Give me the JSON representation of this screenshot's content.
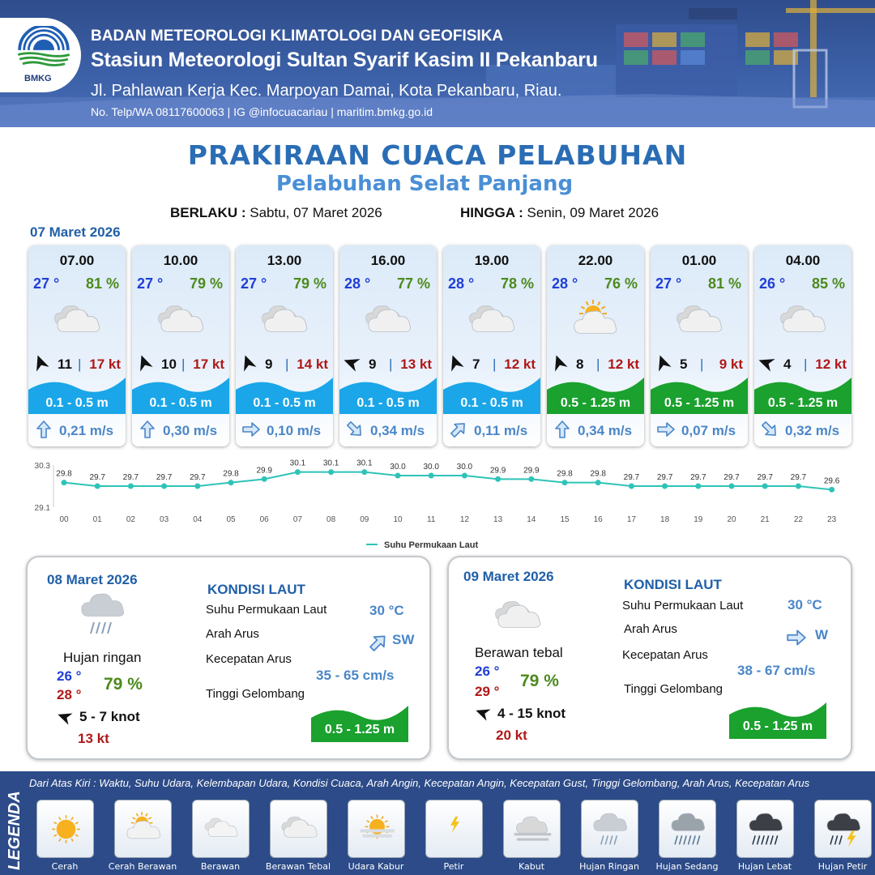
{
  "header": {
    "logo_text": "BMKG",
    "agency": "BADAN METEOROLOGI KLIMATOLOGI DAN GEOFISIKA",
    "station": "Stasiun Meteorologi Sultan Syarif Kasim II Pekanbaru",
    "address": "Jl. Pahlawan Kerja Kec. Marpoyan Damai, Kota Pekanbaru, Riau.",
    "contact": "No. Telp/WA 08117600063 | IG @infocuacariau | maritim.bmkg.go.id"
  },
  "title": "PRAKIRAAN CUACA PELABUHAN",
  "subtitle": "Pelabuhan Selat Panjang",
  "validity": {
    "from_label": "BERLAKU :",
    "from_value": "Sabtu, 07 Maret 2026",
    "to_label": "HINGGA :",
    "to_value": "Senin, 09 Maret 2026"
  },
  "day1_date": "07 Maret 2026",
  "colors": {
    "wave_low": "#1aa6e8",
    "wave_mid": "#1aa12e",
    "temp": "#1f3fd6",
    "humidity": "#4c8a1c",
    "gust": "#b01818"
  },
  "forecast": [
    {
      "time": "07.00",
      "temp": "27 °",
      "humidity": "81 %",
      "icon": "berawan-tebal",
      "wind_dir_deg": 160,
      "wind_speed": "11",
      "gust": "17 kt",
      "wave": "0.1 - 0.5 m",
      "wave_level": "low",
      "current_icon": "arrow-down-icon",
      "current_dir_deg": 180,
      "current": "0,21 m/s"
    },
    {
      "time": "10.00",
      "temp": "27 °",
      "humidity": "79 %",
      "icon": "berawan-tebal",
      "wind_dir_deg": 160,
      "wind_speed": "10",
      "gust": "17 kt",
      "wave": "0.1 - 0.5 m",
      "wave_level": "low",
      "current_icon": "arrow-down-icon",
      "current_dir_deg": 180,
      "current": "0,30 m/s"
    },
    {
      "time": "13.00",
      "temp": "27 °",
      "humidity": "79 %",
      "icon": "berawan-tebal",
      "wind_dir_deg": 160,
      "wind_speed": "9",
      "gust": "14 kt",
      "wave": "0.1 - 0.5 m",
      "wave_level": "low",
      "current_icon": "arrow-left-icon",
      "current_dir_deg": 270,
      "current": "0,10 m/s"
    },
    {
      "time": "16.00",
      "temp": "28 °",
      "humidity": "77 %",
      "icon": "berawan-tebal",
      "wind_dir_deg": 110,
      "wind_speed": "9",
      "gust": "13 kt",
      "wave": "0.1 - 0.5 m",
      "wave_level": "low",
      "current_icon": "arrow-up-left-icon",
      "current_dir_deg": 315,
      "current": "0,34 m/s"
    },
    {
      "time": "19.00",
      "temp": "28 °",
      "humidity": "78 %",
      "icon": "berawan-tebal",
      "wind_dir_deg": 160,
      "wind_speed": "7",
      "gust": "12 kt",
      "wave": "0.1 - 0.5 m",
      "wave_level": "low",
      "current_icon": "arrow-down-left-icon",
      "current_dir_deg": 225,
      "current": "0,11 m/s"
    },
    {
      "time": "22.00",
      "temp": "28 °",
      "humidity": "76 %",
      "icon": "cerah-berawan",
      "wind_dir_deg": 160,
      "wind_speed": "8",
      "gust": "12 kt",
      "wave": "0.5 - 1.25 m",
      "wave_level": "mid",
      "current_icon": "arrow-down-icon",
      "current_dir_deg": 180,
      "current": "0,34 m/s"
    },
    {
      "time": "01.00",
      "temp": "27 °",
      "humidity": "81 %",
      "icon": "berawan-tebal",
      "wind_dir_deg": 160,
      "wind_speed": "5",
      "gust": "9 kt",
      "wave": "0.5 - 1.25 m",
      "wave_level": "mid",
      "current_icon": "arrow-left-icon",
      "current_dir_deg": 270,
      "current": "0,07 m/s"
    },
    {
      "time": "04.00",
      "temp": "26 °",
      "humidity": "85 %",
      "icon": "berawan-tebal",
      "wind_dir_deg": 110,
      "wind_speed": "4",
      "gust": "12 kt",
      "wave": "0.5 - 1.25 m",
      "wave_level": "mid",
      "current_icon": "arrow-up-left-icon",
      "current_dir_deg": 315,
      "current": "0,32 m/s"
    }
  ],
  "chart_data": {
    "type": "line",
    "x": [
      "00",
      "01",
      "02",
      "03",
      "04",
      "05",
      "06",
      "07",
      "08",
      "09",
      "10",
      "11",
      "12",
      "13",
      "14",
      "15",
      "16",
      "17",
      "18",
      "19",
      "20",
      "21",
      "22",
      "23"
    ],
    "series": [
      {
        "name": "Suhu Permukaan Laut",
        "values": [
          29.8,
          29.7,
          29.7,
          29.7,
          29.7,
          29.8,
          29.9,
          30.1,
          30.1,
          30.1,
          30.0,
          30.0,
          30.0,
          29.9,
          29.9,
          29.8,
          29.8,
          29.7,
          29.7,
          29.7,
          29.7,
          29.7,
          29.7,
          29.6
        ],
        "labels": [
          "29.8",
          "29.7",
          "29.7",
          "29.7",
          "29.7",
          "29.8",
          "29.9",
          "30.1",
          "30.1",
          "30.1",
          "30.0",
          "30.0",
          "30.0",
          "29.9",
          "29.9",
          "29.8",
          "29.8",
          "29.7",
          "29.7",
          "29.7",
          "29.7",
          "29.7",
          "29.7",
          "29.6"
        ]
      }
    ],
    "ylim": [
      29.1,
      30.3
    ],
    "ytick_labels": [
      "30.3",
      "29.1"
    ],
    "legend": "bottom-center",
    "grid": false
  },
  "days": [
    {
      "date": "08 Maret 2026",
      "icon": "hujan-ringan",
      "condition": "Hujan ringan",
      "tmin": "26 °",
      "tmax": "28 °",
      "humidity": "79 %",
      "wind_dir_deg": 110,
      "wind": "5  - 7 knot",
      "gust": "13 kt",
      "sea_heading": "KONDISI LAUT",
      "sst_label": "Suhu Permukaan Laut",
      "sst_value": "30 °C",
      "current_dir_label": "Arah Arus",
      "current_dir_icon": "arrow-down-left-icon",
      "current_dir_deg": 225,
      "current_dir_value": "SW",
      "current_speed_label": "Kecepatan Arus",
      "current_speed_value": "35  - 65 cm/s",
      "wave_label": "Tinggi Gelombang",
      "wave_value": "0.5 - 1.25 m"
    },
    {
      "date": "09 Maret 2026",
      "icon": "berawan-tebal",
      "condition": "Berawan tebal",
      "tmin": "26 °",
      "tmax": "29 °",
      "humidity": "79 %",
      "wind_dir_deg": 110,
      "wind": "4  - 15 knot",
      "gust": "20 kt",
      "sea_heading": "KONDISI LAUT",
      "sst_label": "Suhu Permukaan Laut",
      "sst_value": "30 °C",
      "current_dir_label": "Arah Arus",
      "current_dir_icon": "arrow-left-icon",
      "current_dir_deg": 270,
      "current_dir_value": "W",
      "current_speed_label": "Kecepatan Arus",
      "current_speed_value": "38  - 67 cm/s",
      "wave_label": "Tinggi Gelombang",
      "wave_value": "0.5 - 1.25 m"
    }
  ],
  "legend": {
    "title": "LEGENDA",
    "description": "Dari Atas Kiri : Waktu, Suhu Udara, Kelembapan Udara, Kondisi Cuaca, Arah Angin, Kecepatan Angin, Kecepatan Gust, Tinggi Gelombang, Arah Arus, Kecepatan Arus",
    "items": [
      {
        "label": "Cerah",
        "icon": "cerah"
      },
      {
        "label": "Cerah Berawan",
        "icon": "cerah-berawan"
      },
      {
        "label": "Berawan",
        "icon": "berawan"
      },
      {
        "label": "Berawan Tebal",
        "icon": "berawan-tebal"
      },
      {
        "label": "Udara Kabur",
        "icon": "udara-kabur"
      },
      {
        "label": "Petir",
        "icon": "petir"
      },
      {
        "label": "Kabut",
        "icon": "kabut"
      },
      {
        "label": "Hujan Ringan",
        "icon": "hujan-ringan"
      },
      {
        "label": "Hujan Sedang",
        "icon": "hujan-sedang"
      },
      {
        "label": "Hujan Lebat",
        "icon": "hujan-lebat"
      },
      {
        "label": "Hujan Petir",
        "icon": "hujan-petir"
      }
    ]
  }
}
